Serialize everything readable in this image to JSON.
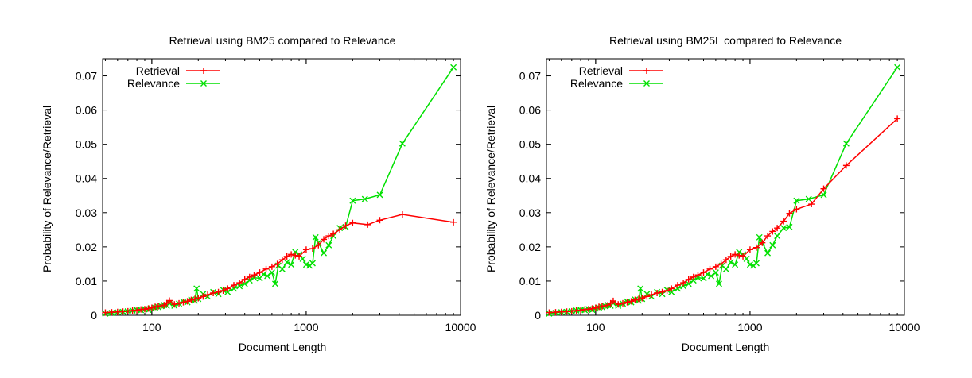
{
  "chart_data": [
    {
      "type": "line",
      "title": "Retrieval using BM25 compared to Relevance",
      "xlabel": "Document Length",
      "ylabel": "Probability of Relevance/Retrieval",
      "x_scale": "log",
      "xlim": [
        48,
        10000
      ],
      "ylim": [
        0,
        0.075
      ],
      "x_ticks": [
        100,
        1000,
        10000
      ],
      "y_ticks": [
        0,
        0.01,
        0.02,
        0.03,
        0.04,
        0.05,
        0.06,
        0.07
      ],
      "legend_position": "top-left",
      "series": [
        {
          "name": "Retrieval",
          "color": "#ff0000",
          "marker": "plus",
          "x": [
            50,
            55,
            60,
            65,
            70,
            75,
            80,
            85,
            90,
            95,
            100,
            105,
            110,
            115,
            120,
            125,
            130,
            140,
            150,
            160,
            170,
            180,
            190,
            200,
            215,
            230,
            250,
            270,
            290,
            310,
            340,
            370,
            400,
            430,
            460,
            500,
            550,
            600,
            650,
            700,
            750,
            800,
            850,
            900,
            1000,
            1100,
            1200,
            1300,
            1400,
            1500,
            1650,
            1800,
            2000,
            2500,
            3000,
            4200,
            9000
          ],
          "y": [
            0.0008,
            0.0009,
            0.001,
            0.0011,
            0.0012,
            0.0014,
            0.0015,
            0.0017,
            0.0018,
            0.002,
            0.0022,
            0.0025,
            0.0026,
            0.0028,
            0.003,
            0.0035,
            0.0043,
            0.0032,
            0.0035,
            0.0038,
            0.0041,
            0.0045,
            0.0048,
            0.005,
            0.0055,
            0.006,
            0.0065,
            0.0068,
            0.0072,
            0.0078,
            0.0088,
            0.0095,
            0.0105,
            0.0112,
            0.0118,
            0.0125,
            0.0135,
            0.0142,
            0.015,
            0.0162,
            0.0172,
            0.0178,
            0.0175,
            0.0172,
            0.0192,
            0.0195,
            0.0205,
            0.0222,
            0.0232,
            0.0238,
            0.025,
            0.0262,
            0.027,
            0.0265,
            0.0278,
            0.0295,
            0.0272
          ]
        },
        {
          "name": "Relevance",
          "color": "#00e000",
          "marker": "x",
          "x": [
            50,
            55,
            60,
            65,
            70,
            75,
            80,
            85,
            90,
            95,
            100,
            105,
            110,
            115,
            120,
            125,
            130,
            140,
            150,
            160,
            170,
            180,
            190,
            195,
            200,
            215,
            230,
            250,
            270,
            290,
            310,
            340,
            370,
            400,
            430,
            460,
            500,
            530,
            560,
            600,
            630,
            660,
            700,
            750,
            800,
            850,
            900,
            950,
            1000,
            1050,
            1100,
            1150,
            1200,
            1300,
            1400,
            1500,
            1650,
            1800,
            2000,
            2400,
            3000,
            4200,
            9000
          ],
          "y": [
            0.0005,
            0.0007,
            0.0009,
            0.001,
            0.0012,
            0.0014,
            0.0016,
            0.0015,
            0.0018,
            0.0016,
            0.002,
            0.0022,
            0.0024,
            0.0027,
            0.003,
            0.0028,
            0.0035,
            0.0028,
            0.0034,
            0.004,
            0.0038,
            0.0046,
            0.0043,
            0.0078,
            0.0048,
            0.0062,
            0.0055,
            0.0068,
            0.0062,
            0.0074,
            0.0068,
            0.0078,
            0.0085,
            0.0092,
            0.0102,
            0.011,
            0.0108,
            0.012,
            0.0115,
            0.0125,
            0.0092,
            0.0145,
            0.0135,
            0.0155,
            0.0148,
            0.0185,
            0.0178,
            0.0165,
            0.0148,
            0.0145,
            0.0152,
            0.0228,
            0.0212,
            0.0182,
            0.0205,
            0.0232,
            0.0255,
            0.0258,
            0.0335,
            0.034,
            0.0352,
            0.0502,
            0.0725
          ]
        }
      ]
    },
    {
      "type": "line",
      "title": "Retrieval using BM25L compared to Relevance",
      "xlabel": "Document Length",
      "ylabel": "Probability of Relevance/Retrieval",
      "x_scale": "log",
      "xlim": [
        48,
        10000
      ],
      "ylim": [
        0,
        0.075
      ],
      "x_ticks": [
        100,
        1000,
        10000
      ],
      "y_ticks": [
        0,
        0.01,
        0.02,
        0.03,
        0.04,
        0.05,
        0.06,
        0.07
      ],
      "legend_position": "top-left",
      "series": [
        {
          "name": "Retrieval",
          "color": "#ff0000",
          "marker": "plus",
          "x": [
            50,
            55,
            60,
            65,
            70,
            75,
            80,
            85,
            90,
            95,
            100,
            105,
            110,
            115,
            120,
            125,
            130,
            140,
            150,
            160,
            170,
            180,
            190,
            200,
            215,
            230,
            250,
            270,
            290,
            310,
            340,
            370,
            400,
            430,
            460,
            500,
            550,
            600,
            650,
            700,
            750,
            800,
            850,
            900,
            1000,
            1100,
            1200,
            1300,
            1400,
            1500,
            1650,
            1800,
            2000,
            2500,
            3000,
            4200,
            9000
          ],
          "y": [
            0.0008,
            0.0009,
            0.001,
            0.0011,
            0.0012,
            0.0014,
            0.0015,
            0.0017,
            0.0018,
            0.002,
            0.0022,
            0.0025,
            0.0026,
            0.0028,
            0.003,
            0.0035,
            0.0042,
            0.0032,
            0.0035,
            0.0038,
            0.0041,
            0.0045,
            0.0048,
            0.005,
            0.0055,
            0.006,
            0.0065,
            0.0068,
            0.0072,
            0.0078,
            0.0088,
            0.0095,
            0.0105,
            0.0112,
            0.0118,
            0.0125,
            0.0135,
            0.0142,
            0.015,
            0.0162,
            0.0172,
            0.0178,
            0.0175,
            0.0172,
            0.0192,
            0.0198,
            0.0212,
            0.0232,
            0.0245,
            0.0255,
            0.0275,
            0.0298,
            0.031,
            0.0325,
            0.037,
            0.0438,
            0.0575
          ]
        },
        {
          "name": "Relevance",
          "color": "#00e000",
          "marker": "x",
          "x": [
            50,
            55,
            60,
            65,
            70,
            75,
            80,
            85,
            90,
            95,
            100,
            105,
            110,
            115,
            120,
            125,
            130,
            140,
            150,
            160,
            170,
            180,
            190,
            195,
            200,
            215,
            230,
            250,
            270,
            290,
            310,
            340,
            370,
            400,
            430,
            460,
            500,
            530,
            560,
            600,
            630,
            660,
            700,
            750,
            800,
            850,
            900,
            950,
            1000,
            1050,
            1100,
            1150,
            1200,
            1300,
            1400,
            1500,
            1650,
            1800,
            2000,
            2400,
            3000,
            4200,
            9000
          ],
          "y": [
            0.0005,
            0.0007,
            0.0009,
            0.001,
            0.0012,
            0.0014,
            0.0016,
            0.0015,
            0.0018,
            0.0016,
            0.002,
            0.0022,
            0.0024,
            0.0027,
            0.003,
            0.0028,
            0.0035,
            0.0028,
            0.0034,
            0.004,
            0.0038,
            0.0046,
            0.0043,
            0.0078,
            0.0048,
            0.0062,
            0.0055,
            0.0068,
            0.0062,
            0.0074,
            0.0068,
            0.0078,
            0.0085,
            0.0092,
            0.0102,
            0.011,
            0.0108,
            0.012,
            0.0115,
            0.0125,
            0.0092,
            0.0145,
            0.0135,
            0.0155,
            0.0148,
            0.0185,
            0.0178,
            0.0165,
            0.0148,
            0.0145,
            0.0152,
            0.0228,
            0.0212,
            0.0182,
            0.0205,
            0.0232,
            0.0255,
            0.0258,
            0.0335,
            0.034,
            0.0352,
            0.0502,
            0.0725
          ]
        }
      ]
    }
  ]
}
